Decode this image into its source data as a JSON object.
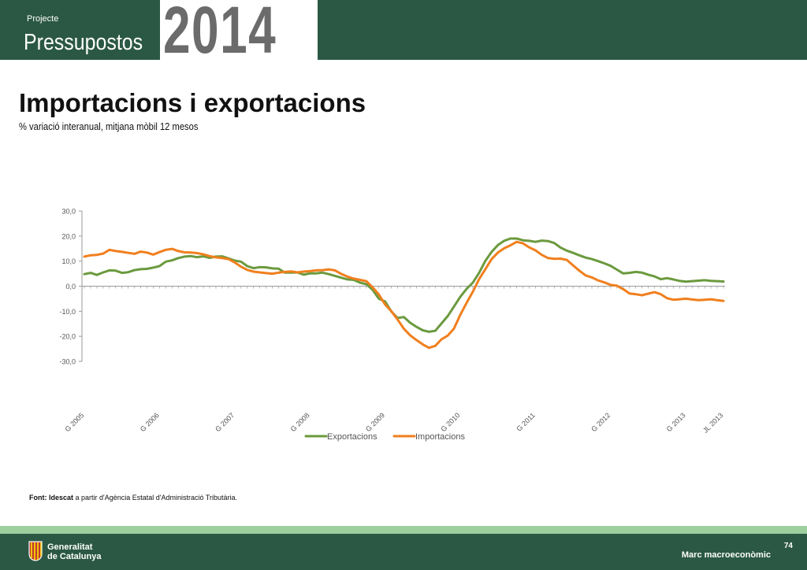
{
  "header": {
    "label": "Projecte",
    "title": "Pressupostos",
    "year": "2014",
    "background_color": "#2b5844"
  },
  "page": {
    "title": "Importacions i exportacions",
    "subtitle": "% variació interanual, mitjana mòbil 12 mesos"
  },
  "source": {
    "bold": "Font: Idescat",
    "text": " a partir d'Agència Estatal d'Administració Tributària."
  },
  "footer": {
    "org_line1": "Generalitat",
    "org_line2": "de Catalunya",
    "section": "Marc macroeconòmic",
    "page_number": "74",
    "logo_icon": "generalitat-logo-icon"
  },
  "chart_data": {
    "type": "line",
    "title": "",
    "xlabel": "",
    "ylabel": "",
    "ylim": [
      -30,
      30
    ],
    "yticks": [
      30,
      20,
      10,
      0,
      -10,
      -20,
      -30
    ],
    "ytick_labels": [
      "30,0",
      "20,0",
      "10,0",
      "0,0",
      "-10,0",
      "-20,0",
      "-30,0"
    ],
    "grid": false,
    "legend": "bottom",
    "x": [
      "G 2005",
      "F 2005",
      "M 2005",
      "A 2005",
      "M 2005",
      "J 2005",
      "JL 2005",
      "AG 2005",
      "S 2005",
      "O 2005",
      "N 2005",
      "D 2005",
      "G 2006",
      "F 2006",
      "M 2006",
      "A 2006",
      "M 2006",
      "J 2006",
      "JL 2006",
      "AG 2006",
      "S 2006",
      "O 2006",
      "N 2006",
      "D 2006",
      "G 2007",
      "F 2007",
      "M 2007",
      "A 2007",
      "M 2007",
      "J 2007",
      "JL 2007",
      "AG 2007",
      "S 2007",
      "O 2007",
      "N 2007",
      "D 2007",
      "G 2008",
      "F 2008",
      "M 2008",
      "A 2008",
      "M 2008",
      "J 2008",
      "JL 2008",
      "AG 2008",
      "S 2008",
      "O 2008",
      "N 2008",
      "D 2008",
      "G 2009",
      "F 2009",
      "M 2009",
      "A 2009",
      "M 2009",
      "J 2009",
      "JL 2009",
      "AG 2009",
      "S 2009",
      "O 2009",
      "N 2009",
      "D 2009",
      "G 2010",
      "F 2010",
      "M 2010",
      "A 2010",
      "M 2010",
      "J 2010",
      "JL 2010",
      "AG 2010",
      "S 2010",
      "O 2010",
      "N 2010",
      "D 2010",
      "G 2011",
      "F 2011",
      "M 2011",
      "A 2011",
      "M 2011",
      "J 2011",
      "JL 2011",
      "AG 2011",
      "S 2011",
      "O 2011",
      "N 2011",
      "D 2011",
      "G 2012",
      "F 2012",
      "M 2012",
      "A 2012",
      "M 2012",
      "J 2012",
      "JL 2012",
      "AG 2012",
      "S 2012",
      "O 2012",
      "N 2012",
      "D 2012",
      "G 2013",
      "F 2013",
      "M 2013",
      "A 2013",
      "M 2013",
      "J 2013",
      "JL 2013"
    ],
    "x_tick_labels": [
      {
        "index": 0,
        "label": "G 2005"
      },
      {
        "index": 12,
        "label": "G 2006"
      },
      {
        "index": 24,
        "label": "G 2007"
      },
      {
        "index": 36,
        "label": "G 2008"
      },
      {
        "index": 48,
        "label": "G 2009"
      },
      {
        "index": 60,
        "label": "G 2010"
      },
      {
        "index": 72,
        "label": "G 2011"
      },
      {
        "index": 84,
        "label": "G 2012"
      },
      {
        "index": 96,
        "label": "G 2013"
      },
      {
        "index": 102,
        "label": "JL 2013"
      }
    ],
    "series": [
      {
        "name": "Exportacions",
        "color": "#6b9a3e",
        "values": [
          4.8,
          5.3,
          4.5,
          5.5,
          6.3,
          6.2,
          5.3,
          5.6,
          6.4,
          6.8,
          6.9,
          7.4,
          8.0,
          9.8,
          10.3,
          11.2,
          11.8,
          12.0,
          11.6,
          11.9,
          11.3,
          11.8,
          11.9,
          11.1,
          10.2,
          9.8,
          8.0,
          7.2,
          7.6,
          7.5,
          7.1,
          7.0,
          5.4,
          5.4,
          5.5,
          4.6,
          5.1,
          5.1,
          5.4,
          4.8,
          4.1,
          3.4,
          2.7,
          2.5,
          1.4,
          0.8,
          -1.4,
          -5.0,
          -6.1,
          -10.1,
          -12.7,
          -12.3,
          -14.6,
          -16.2,
          -17.6,
          -18.2,
          -17.8,
          -14.9,
          -11.9,
          -8.1,
          -4.2,
          -1.1,
          1.4,
          5.3,
          10.1,
          13.7,
          16.4,
          18.1,
          19.0,
          19.0,
          18.3,
          18.1,
          17.7,
          18.2,
          18.0,
          17.2,
          15.4,
          14.2,
          13.3,
          12.3,
          11.4,
          10.8,
          10.0,
          9.1,
          8.1,
          6.6,
          5.1,
          5.3,
          5.7,
          5.4,
          4.6,
          3.9,
          2.8,
          3.2,
          2.7,
          2.1,
          1.8,
          2.0,
          2.2,
          2.4,
          2.1,
          2.0,
          1.9
        ]
      },
      {
        "name": "Importacions",
        "color": "#f07f1e",
        "values": [
          11.8,
          12.3,
          12.5,
          13.0,
          14.5,
          14.0,
          13.7,
          13.3,
          12.9,
          13.8,
          13.4,
          12.6,
          13.6,
          14.5,
          14.9,
          14.0,
          13.5,
          13.4,
          13.2,
          12.7,
          12.0,
          11.5,
          11.2,
          10.8,
          9.5,
          7.8,
          6.5,
          5.8,
          5.5,
          5.2,
          5.0,
          5.4,
          5.7,
          5.9,
          5.5,
          5.8,
          6.0,
          6.3,
          6.4,
          6.7,
          6.3,
          4.9,
          3.8,
          3.0,
          2.5,
          2.0,
          -0.4,
          -3.3,
          -7.3,
          -10.0,
          -13.3,
          -17.0,
          -19.6,
          -21.5,
          -23.2,
          -24.6,
          -23.8,
          -21.2,
          -19.7,
          -16.9,
          -11.4,
          -6.7,
          -2.2,
          2.8,
          6.8,
          10.8,
          13.4,
          15.1,
          16.3,
          17.7,
          17.1,
          15.5,
          14.3,
          12.5,
          11.2,
          10.9,
          11.0,
          10.5,
          8.3,
          6.2,
          4.3,
          3.5,
          2.3,
          1.5,
          0.5,
          0.2,
          -1.2,
          -2.9,
          -3.2,
          -3.6,
          -3.0,
          -2.4,
          -3.2,
          -4.8,
          -5.4,
          -5.2,
          -5.0,
          -5.3,
          -5.6,
          -5.4,
          -5.2,
          -5.6,
          -5.9
        ]
      }
    ]
  }
}
